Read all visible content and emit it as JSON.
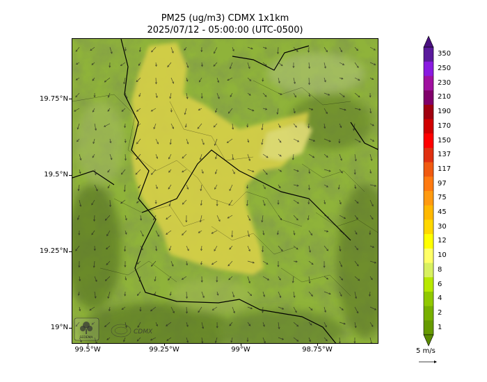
{
  "title": {
    "line1": "PM25 (ug/m3) CDMX 1x1km",
    "line2": "2025/07/12 - 05:00:00 (UTC-0500)"
  },
  "axes": {
    "y_ticks": [
      "19.75°N",
      "19.5°N",
      "19.25°N",
      "19°N"
    ],
    "x_ticks": [
      "99.5°W",
      "99.25°W",
      "99°W",
      "98.75°W"
    ]
  },
  "colorbar": {
    "labels": [
      "350",
      "250",
      "230",
      "210",
      "190",
      "170",
      "150",
      "137",
      "117",
      "97",
      "75",
      "45",
      "30",
      "12",
      "10",
      "8",
      "6",
      "4",
      "2",
      "1"
    ],
    "colors": [
      "#5a1a9c",
      "#8a1ae0",
      "#a010a0",
      "#80006a",
      "#a00010",
      "#d00000",
      "#ff0000",
      "#e03010",
      "#f05a10",
      "#ff7a10",
      "#ff9a10",
      "#ffb800",
      "#ffd800",
      "#ffff00",
      "#ffff66",
      "#d8f060",
      "#b8e800",
      "#90c800",
      "#78b000",
      "#669a00"
    ],
    "top_extend_color": "#4a1080",
    "bottom_extend_color": "#5a8a00"
  },
  "wind_key": {
    "label": "5 m/s"
  },
  "logos": {
    "left": "SEDEMA",
    "right": "CDMX"
  },
  "colors": {
    "terrain_base": "#8fb33a",
    "terrain_dark": "#5d7a28",
    "pm_yellow": "#dcd24a",
    "pm_light": "#e8e07a",
    "boundary": "#000000"
  }
}
